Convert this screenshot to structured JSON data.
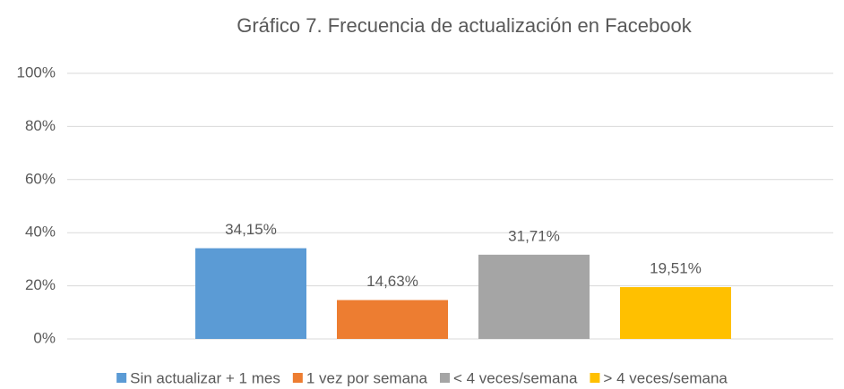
{
  "chart_data": {
    "type": "bar",
    "title": "Gráfico 7. Frecuencia de actualización en Facebook",
    "categories": [
      null
    ],
    "series": [
      {
        "name": "Sin actualizar + 1 mes",
        "color": "#5b9bd5",
        "values": [
          34.15
        ],
        "value_labels": [
          "34,15%"
        ]
      },
      {
        "name": "1 vez por semana",
        "color": "#ed7d31",
        "values": [
          14.63
        ],
        "value_labels": [
          "14,63%"
        ]
      },
      {
        "name": "< 4 veces/semana",
        "color": "#a5a5a5",
        "values": [
          31.71
        ],
        "value_labels": [
          "31,71%"
        ]
      },
      {
        "name": "> 4 veces/semana",
        "color": "#ffc000",
        "values": [
          19.51
        ],
        "value_labels": [
          "19,51%"
        ]
      }
    ],
    "ylim": [
      0,
      100
    ],
    "yticks": [
      {
        "value": 0,
        "label": "0%"
      },
      {
        "value": 20,
        "label": "20%"
      },
      {
        "value": 40,
        "label": "40%"
      },
      {
        "value": 60,
        "label": "60%"
      },
      {
        "value": 80,
        "label": "80%"
      },
      {
        "value": 100,
        "label": "100%"
      }
    ],
    "grid": true,
    "legend": "bottom"
  }
}
